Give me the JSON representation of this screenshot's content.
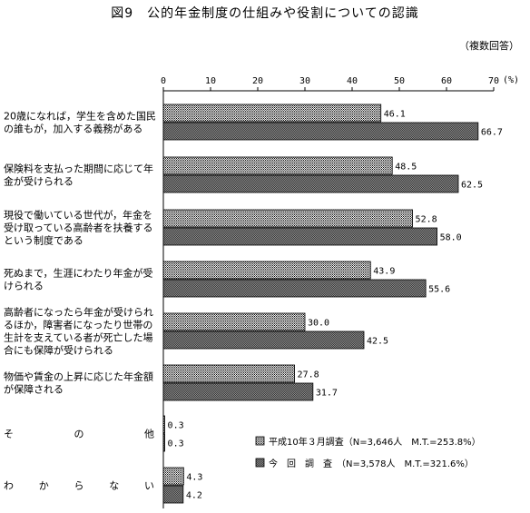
{
  "title": "図9　公的年金制度の仕組みや役割についての認識",
  "note": "（複数回答）",
  "chart_data": {
    "type": "bar",
    "orientation": "horizontal",
    "unit": "(%)",
    "xlim": [
      0,
      70
    ],
    "ticks": [
      0,
      10,
      20,
      30,
      40,
      50,
      60,
      70
    ],
    "grid": false,
    "legend_position": "bottom-right",
    "categories": [
      [
        "20歳になれば，学生を含めた国民",
        "の誰もが，加入する義務がある"
      ],
      [
        "保険料を支払った期間に応じて年",
        "金が受けられる"
      ],
      [
        "現役で働いている世代が，年金を",
        "受け取っている高齢者を扶養する",
        "という制度である"
      ],
      [
        "死ぬまで，生涯にわたり年金が受",
        "けられる"
      ],
      [
        "高齢者になったら年金が受けられ",
        "るほか，障害者になったり世帯の",
        "生計を支えている者が死亡した場",
        "合にも保障が受けられる"
      ],
      [
        "物価や賃金の上昇に応じた年金額",
        "が保障される"
      ],
      [
        "そ　　　の　　　他"
      ],
      [
        "わ　か　ら　な　い"
      ]
    ],
    "series": [
      {
        "name": "平成10年３月調査",
        "legend_text": "平成10年３月調査（N=3,646人　M.T.=253.8%）",
        "pattern": "dotted",
        "values": [
          46.1,
          48.5,
          52.8,
          43.9,
          30.0,
          27.8,
          0.3,
          4.3
        ],
        "labels": [
          "46.1",
          "48.5",
          "52.8",
          "43.9",
          "30.0",
          "27.8",
          "0.3",
          "4.3"
        ]
      },
      {
        "name": "今回調査",
        "legend_text": "今　回　調　査　（N=3,578人　M.T.=321.6%）",
        "pattern": "dark",
        "values": [
          66.7,
          62.5,
          58.0,
          55.6,
          42.5,
          31.7,
          0.3,
          4.2
        ],
        "labels": [
          "66.7",
          "62.5",
          "58.0",
          "55.6",
          "42.5",
          "31.7",
          "0.3",
          "4.2"
        ]
      }
    ]
  }
}
